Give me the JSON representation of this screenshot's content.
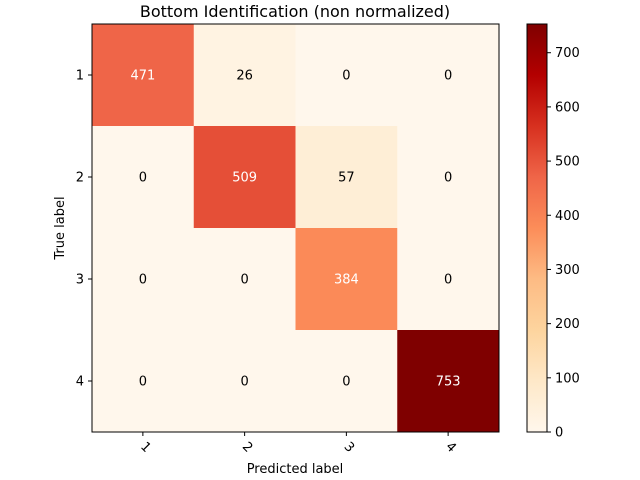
{
  "chart_data": {
    "type": "heatmap",
    "title": "Bottom Identification (non normalized)",
    "xlabel": "Predicted label",
    "ylabel": "True label",
    "x_categories": [
      "1",
      "2",
      "3",
      "4"
    ],
    "y_categories": [
      "1",
      "2",
      "3",
      "4"
    ],
    "matrix": [
      [
        471,
        26,
        0,
        0
      ],
      [
        0,
        509,
        57,
        0
      ],
      [
        0,
        0,
        384,
        0
      ],
      [
        0,
        0,
        0,
        753
      ]
    ],
    "colormap": "OrRd",
    "colorbar": {
      "range": [
        0,
        753
      ],
      "ticks": [
        "0",
        "100",
        "200",
        "300",
        "400",
        "500",
        "600",
        "700"
      ]
    },
    "text_color_light": "#ffffff",
    "text_color_dark": "#000000"
  }
}
